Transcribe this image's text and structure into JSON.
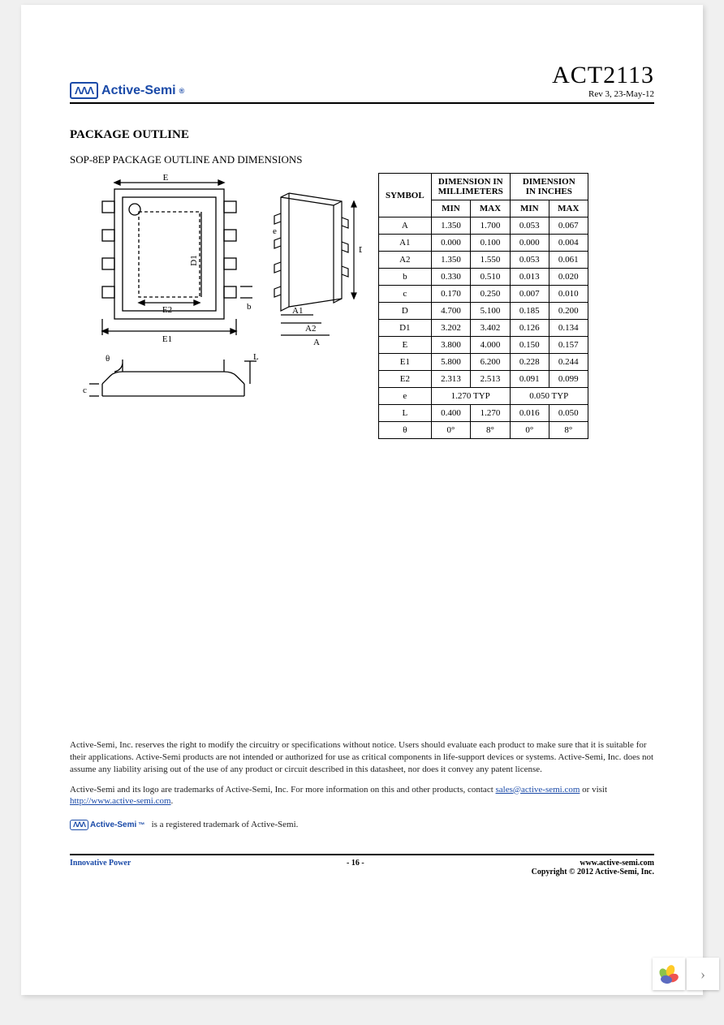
{
  "header": {
    "brand_name": "Active-Semi",
    "brand_mark": "®",
    "wave_glyph": "ΛΛΛ",
    "part_number": "ACT2113",
    "revision": "Rev 3, 23-May-12"
  },
  "section": {
    "title": "PACKAGE OUTLINE",
    "subtitle": "SOP-8EP PACKAGE OUTLINE AND DIMENSIONS"
  },
  "diagram": {
    "top_labels": [
      "E",
      "D1",
      "E2",
      "E1",
      "b",
      "e",
      "A1",
      "A2",
      "A",
      "D"
    ],
    "side_labels": [
      "θ",
      "c",
      "L"
    ]
  },
  "table": {
    "header": {
      "symbol": "SYMBOL",
      "mm": "DIMENSION IN MILLIMETERS",
      "in": "DIMENSION IN INCHES",
      "min": "MIN",
      "max": "MAX"
    },
    "rows": [
      {
        "sym": "A",
        "mm_min": "1.350",
        "mm_max": "1.700",
        "in_min": "0.053",
        "in_max": "0.067"
      },
      {
        "sym": "A1",
        "mm_min": "0.000",
        "mm_max": "0.100",
        "in_min": "0.000",
        "in_max": "0.004"
      },
      {
        "sym": "A2",
        "mm_min": "1.350",
        "mm_max": "1.550",
        "in_min": "0.053",
        "in_max": "0.061"
      },
      {
        "sym": "b",
        "mm_min": "0.330",
        "mm_max": "0.510",
        "in_min": "0.013",
        "in_max": "0.020"
      },
      {
        "sym": "c",
        "mm_min": "0.170",
        "mm_max": "0.250",
        "in_min": "0.007",
        "in_max": "0.010"
      },
      {
        "sym": "D",
        "mm_min": "4.700",
        "mm_max": "5.100",
        "in_min": "0.185",
        "in_max": "0.200"
      },
      {
        "sym": "D1",
        "mm_min": "3.202",
        "mm_max": "3.402",
        "in_min": "0.126",
        "in_max": "0.134"
      },
      {
        "sym": "E",
        "mm_min": "3.800",
        "mm_max": "4.000",
        "in_min": "0.150",
        "in_max": "0.157"
      },
      {
        "sym": "E1",
        "mm_min": "5.800",
        "mm_max": "6.200",
        "in_min": "0.228",
        "in_max": "0.244"
      },
      {
        "sym": "E2",
        "mm_min": "2.313",
        "mm_max": "2.513",
        "in_min": "0.091",
        "in_max": "0.099"
      },
      {
        "sym": "e",
        "mm_typ": "1.270 TYP",
        "in_typ": "0.050 TYP"
      },
      {
        "sym": "L",
        "mm_min": "0.400",
        "mm_max": "1.270",
        "in_min": "0.016",
        "in_max": "0.050"
      },
      {
        "sym": "θ",
        "mm_min": "0°",
        "mm_max": "8°",
        "in_min": "0°",
        "in_max": "8°"
      }
    ]
  },
  "legal": {
    "p1": "Active-Semi, Inc. reserves the right to modify the circuitry or specifications without notice. Users should evaluate each product to make sure that it is suitable for their applications. Active-Semi products are not intended or authorized for use as critical components in life-support devices or systems. Active-Semi, Inc. does not assume any liability arising out of the use of any product or circuit described in this datasheet, nor does it convey any patent license.",
    "p2a": "Active-Semi and its logo are trademarks of Active-Semi, Inc. For more information on this and other products, contact ",
    "email": "sales@active-semi.com",
    "p2b": " or visit ",
    "url": "http://www.active-semi.com",
    "p2c": ".",
    "trademark": "is a registered trademark of Active-Semi."
  },
  "footer": {
    "left": "Innovative Power",
    "center": "- 16 -",
    "right": "www.active-semi.com",
    "copyright": "Copyright © 2012 Active-Semi, Inc."
  },
  "colors": {
    "brand_blue": "#1a4aa8",
    "text": "#000000",
    "link": "#1a4aa8",
    "page_bg": "#ffffff",
    "body_bg": "#f0f0f0",
    "border": "#000000"
  },
  "nav": {
    "chevron": "›"
  }
}
